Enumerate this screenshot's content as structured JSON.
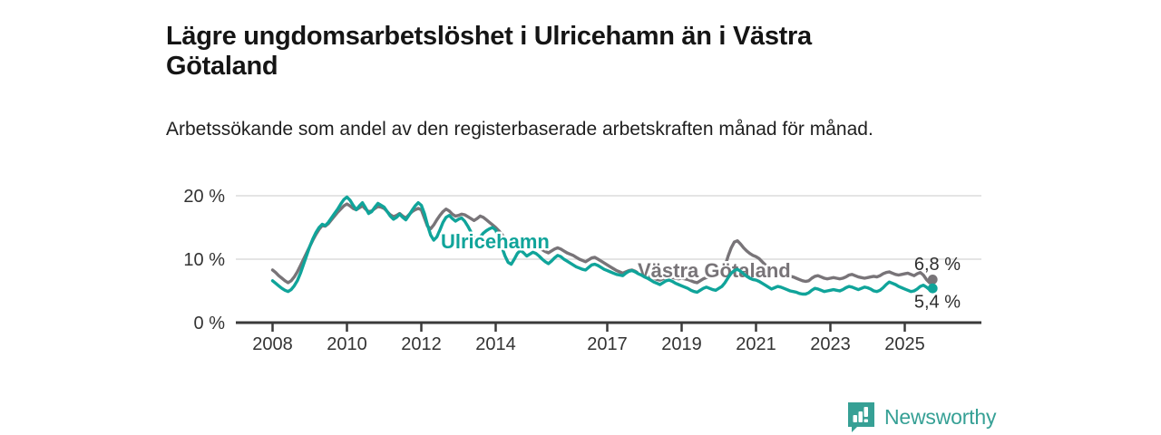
{
  "header": {
    "title": "Lägre ungdomsarbetslöshet i Ulricehamn än i Västra Götaland",
    "subtitle": "Arbetssökande som andel av den registerbaserade arbetskraften månad för månad."
  },
  "footer": {
    "brand": "Newsworthy",
    "logo_icon": "newsworthy-chart-bubble-icon"
  },
  "colors": {
    "teal": "#10a49a",
    "gray": "#787478",
    "grid": "#dcdcdc",
    "axis": "#3a3a3a",
    "tick_text": "#333333",
    "end_label_text": "#2d2d2d",
    "brand_teal": "#36a095"
  },
  "chart_data": {
    "type": "line",
    "title": "Lägre ungdomsarbetslöshet i Ulricehamn än i Västra Götaland",
    "subtitle": "Arbetssökande som andel av den registerbaserade arbetskraften månad för månad.",
    "unit": "%",
    "frequency": "monthly",
    "x_start": "2008-01",
    "x_end": "2025-10",
    "xlim": [
      2008,
      2025.83
    ],
    "ylim": [
      0,
      22
    ],
    "grid": "horizontal-only",
    "legend_position": "inline-labels",
    "x_ticks": [
      2008,
      2010,
      2012,
      2014,
      2017,
      2019,
      2021,
      2023,
      2025
    ],
    "y_ticks": [
      {
        "value": 0,
        "label": "0 %"
      },
      {
        "value": 10,
        "label": "10 %"
      },
      {
        "value": 20,
        "label": "20 %"
      }
    ],
    "series": [
      {
        "name": "Västra Götaland",
        "color": "#787478",
        "end_value_label": "6,8 %",
        "end_label_side": "above",
        "inline_label": {
          "x": 703,
          "y": 306
        },
        "values": [
          8.3,
          7.9,
          7.4,
          7.0,
          6.6,
          6.3,
          6.6,
          7.2,
          8.0,
          9.0,
          10.0,
          11.0,
          12.0,
          13.0,
          13.9,
          14.7,
          15.3,
          15.2,
          15.6,
          16.2,
          16.8,
          17.4,
          17.9,
          18.4,
          18.7,
          18.4,
          18.0,
          17.8,
          18.1,
          18.4,
          17.9,
          17.5,
          17.6,
          18.0,
          18.3,
          18.2,
          18.0,
          17.5,
          17.0,
          16.7,
          16.9,
          17.2,
          16.8,
          16.5,
          17.0,
          17.5,
          17.8,
          18.0,
          17.8,
          16.5,
          15.2,
          14.8,
          15.4,
          16.2,
          16.9,
          17.5,
          17.9,
          17.6,
          17.1,
          16.8,
          16.9,
          17.1,
          17.0,
          16.7,
          16.4,
          16.1,
          16.4,
          16.8,
          16.6,
          16.2,
          15.8,
          15.4,
          15.0,
          14.5,
          13.9,
          13.3,
          12.8,
          12.4,
          12.7,
          13.1,
          13.3,
          13.0,
          12.6,
          12.4,
          12.2,
          12.0,
          11.8,
          11.5,
          11.2,
          11.0,
          11.3,
          11.6,
          11.8,
          11.6,
          11.3,
          11.0,
          10.8,
          10.6,
          10.3,
          10.0,
          9.8,
          9.6,
          9.9,
          10.2,
          10.3,
          10.0,
          9.7,
          9.4,
          9.1,
          8.8,
          8.5,
          8.2,
          8.0,
          7.8,
          8.0,
          8.2,
          8.3,
          8.1,
          7.8,
          7.6,
          7.5,
          7.4,
          7.2,
          7.0,
          6.8,
          6.7,
          6.9,
          7.1,
          7.2,
          7.1,
          7.0,
          6.9,
          7.0,
          6.9,
          6.8,
          6.6,
          6.4,
          6.3,
          6.6,
          6.9,
          7.1,
          7.1,
          7.2,
          7.3,
          7.5,
          7.9,
          8.9,
          10.5,
          11.8,
          12.7,
          12.9,
          12.4,
          11.8,
          11.3,
          10.9,
          10.6,
          10.4,
          10.1,
          9.6,
          9.1,
          8.6,
          8.1,
          8.2,
          8.3,
          8.1,
          7.8,
          7.5,
          7.3,
          7.2,
          7.0,
          6.8,
          6.6,
          6.5,
          6.6,
          7.0,
          7.3,
          7.4,
          7.2,
          7.0,
          6.9,
          7.0,
          7.1,
          7.0,
          6.9,
          7.0,
          7.2,
          7.5,
          7.6,
          7.4,
          7.2,
          7.1,
          7.0,
          7.1,
          7.2,
          7.3,
          7.2,
          7.4,
          7.7,
          7.9,
          8.0,
          7.8,
          7.6,
          7.5,
          7.6,
          7.7,
          7.8,
          7.6,
          7.4,
          7.7,
          7.9,
          7.5,
          6.8,
          6.3,
          6.8
        ]
      },
      {
        "name": "Ulricehamn",
        "color": "#10a49a",
        "end_value_label": "5,4 %",
        "end_label_side": "below",
        "inline_label": {
          "x": 486,
          "y": 274
        },
        "values": [
          6.6,
          6.2,
          5.8,
          5.4,
          5.1,
          4.9,
          5.2,
          5.8,
          6.6,
          7.8,
          9.2,
          10.6,
          12.0,
          13.2,
          14.2,
          15.0,
          15.5,
          15.3,
          15.8,
          16.5,
          17.2,
          17.9,
          18.7,
          19.4,
          19.8,
          19.3,
          18.5,
          17.8,
          18.4,
          18.9,
          18.1,
          17.2,
          17.5,
          18.2,
          18.8,
          18.5,
          18.2,
          17.5,
          16.8,
          16.3,
          16.6,
          17.1,
          16.6,
          16.2,
          16.9,
          17.7,
          18.4,
          18.9,
          18.5,
          17.2,
          15.4,
          13.8,
          13.0,
          13.5,
          14.6,
          15.8,
          16.6,
          16.9,
          16.4,
          16.0,
          16.3,
          16.5,
          16.0,
          15.2,
          14.3,
          13.4,
          12.9,
          13.5,
          14.1,
          14.5,
          14.8,
          15.0,
          14.6,
          13.4,
          11.9,
          10.5,
          9.5,
          9.2,
          10.0,
          10.9,
          11.4,
          11.0,
          10.5,
          10.8,
          11.1,
          10.9,
          10.5,
          10.0,
          9.6,
          9.3,
          9.7,
          10.2,
          10.6,
          10.4,
          10.0,
          9.7,
          9.4,
          9.1,
          8.8,
          8.6,
          8.4,
          8.3,
          8.7,
          9.1,
          9.2,
          9.0,
          8.7,
          8.4,
          8.2,
          8.0,
          7.8,
          7.6,
          7.5,
          7.4,
          7.8,
          8.1,
          8.2,
          8.0,
          7.7,
          7.5,
          7.2,
          7.0,
          6.7,
          6.4,
          6.2,
          6.0,
          6.3,
          6.6,
          6.7,
          6.5,
          6.2,
          6.0,
          5.8,
          5.6,
          5.4,
          5.1,
          4.9,
          4.8,
          5.1,
          5.4,
          5.6,
          5.4,
          5.2,
          5.1,
          5.4,
          5.7,
          6.3,
          7.1,
          7.8,
          8.2,
          8.4,
          8.1,
          7.7,
          7.3,
          7.0,
          6.8,
          6.7,
          6.5,
          6.2,
          5.9,
          5.6,
          5.3,
          5.5,
          5.7,
          5.6,
          5.4,
          5.2,
          5.0,
          4.9,
          4.8,
          4.6,
          4.5,
          4.5,
          4.7,
          5.1,
          5.4,
          5.3,
          5.1,
          4.9,
          5.0,
          5.1,
          5.2,
          5.1,
          5.0,
          5.2,
          5.5,
          5.7,
          5.6,
          5.4,
          5.2,
          5.4,
          5.6,
          5.5,
          5.3,
          5.0,
          4.9,
          5.1,
          5.5,
          6.0,
          6.4,
          6.2,
          6.0,
          5.7,
          5.5,
          5.3,
          5.1,
          4.9,
          5.0,
          5.3,
          5.7,
          5.9,
          5.6,
          5.2,
          5.4
        ]
      }
    ]
  }
}
